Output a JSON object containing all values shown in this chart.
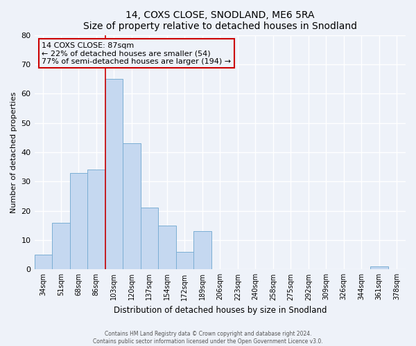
{
  "title": "14, COXS CLOSE, SNODLAND, ME6 5RA",
  "subtitle": "Size of property relative to detached houses in Snodland",
  "xlabel": "Distribution of detached houses by size in Snodland",
  "ylabel": "Number of detached properties",
  "bar_labels": [
    "34sqm",
    "51sqm",
    "68sqm",
    "86sqm",
    "103sqm",
    "120sqm",
    "137sqm",
    "154sqm",
    "172sqm",
    "189sqm",
    "206sqm",
    "223sqm",
    "240sqm",
    "258sqm",
    "275sqm",
    "292sqm",
    "309sqm",
    "326sqm",
    "344sqm",
    "361sqm",
    "378sqm"
  ],
  "bar_values": [
    5,
    16,
    33,
    34,
    65,
    43,
    21,
    15,
    6,
    13,
    0,
    0,
    0,
    0,
    0,
    0,
    0,
    0,
    0,
    1,
    0
  ],
  "bar_color": "#c5d8f0",
  "bar_edge_color": "#7baed4",
  "ylim": [
    0,
    80
  ],
  "yticks": [
    0,
    10,
    20,
    30,
    40,
    50,
    60,
    70,
    80
  ],
  "annotation_title": "14 COXS CLOSE: 87sqm",
  "annotation_line1": "← 22% of detached houses are smaller (54)",
  "annotation_line2": "77% of semi-detached houses are larger (194) →",
  "footer_line1": "Contains HM Land Registry data © Crown copyright and database right 2024.",
  "footer_line2": "Contains public sector information licensed under the Open Government Licence v3.0.",
  "bg_color": "#eef2f9",
  "grid_color": "#ffffff",
  "red_line_color": "#cc0000",
  "red_line_bar_index": 4
}
